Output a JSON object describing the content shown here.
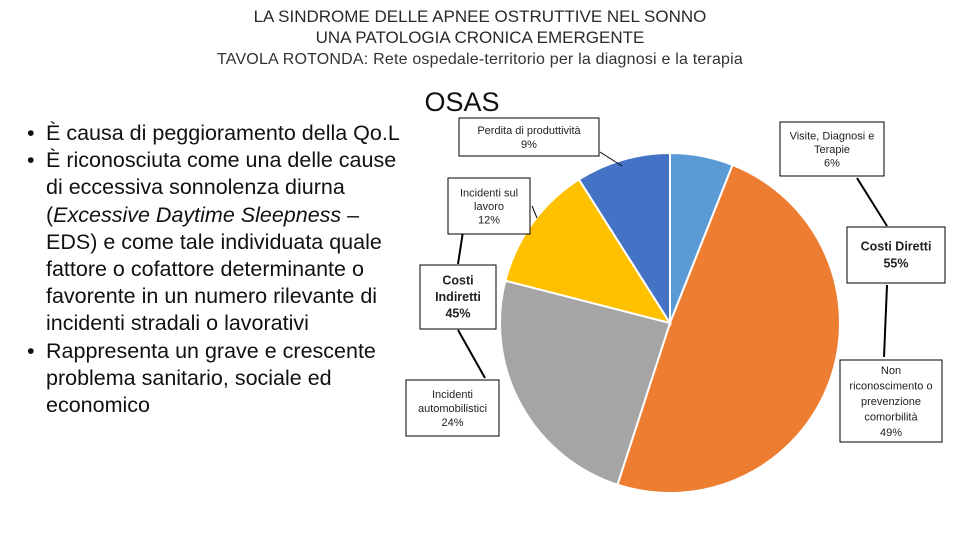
{
  "header": {
    "title_line1": "LA SINDROME DELLE APNEE OSTRUTTIVE NEL SONNO",
    "title_line2": "UNA PATOLOGIA CRONICA EMERGENTE",
    "subtitle": "TAVOLA ROTONDA: Rete ospedale-territorio per la diagnosi e la terapia"
  },
  "bullets": [
    {
      "segments": [
        {
          "text": "È causa di peggioramento della Qo.L",
          "italic": false
        }
      ]
    },
    {
      "segments": [
        {
          "text": "È riconosciuta come una delle cause di eccessiva sonnolenza diurna (",
          "italic": false
        },
        {
          "text": "Excessive Daytime Sleepness",
          "italic": true
        },
        {
          "text": " – EDS) e come tale individuata quale fattore o cofattore determinante o favorente in un numero rilevante di incidenti stradali o lavorativi",
          "italic": false
        }
      ]
    },
    {
      "segments": [
        {
          "text": "Rappresenta un grave e crescente problema sanitario, sociale ed economico",
          "italic": false
        }
      ]
    }
  ],
  "chart_data": {
    "type": "pie",
    "title": "OSAS",
    "slices": [
      {
        "name": "Visite, Diagnosi e Terapie",
        "value": 6,
        "color": "#5B9BD5"
      },
      {
        "name": "Non riconoscimento o prevenzione comorbilità",
        "value": 49,
        "color": "#ED7D31"
      },
      {
        "name": "Incidenti automobilistici",
        "value": 24,
        "color": "#A5A5A5"
      },
      {
        "name": "Incidenti sul lavoro",
        "value": 12,
        "color": "#FFC000"
      },
      {
        "name": "Perdita di produttività",
        "value": 9,
        "color": "#4472C4"
      }
    ],
    "labels": [
      {
        "lines": [
          "Perdita di produttività",
          "9%"
        ]
      },
      {
        "lines": [
          "Visite, Diagnosi e",
          "Terapie",
          "6%"
        ]
      },
      {
        "lines": [
          "Incidenti sul",
          "lavoro",
          "12%"
        ]
      },
      {
        "lines": [
          "Costi Diretti",
          "55%"
        ]
      },
      {
        "lines": [
          "Costi",
          "Indiretti",
          "45%"
        ]
      },
      {
        "lines": [
          "Non",
          "riconoscimento o",
          "prevenzione",
          "comorbilità",
          "49%"
        ]
      },
      {
        "lines": [
          "Incidenti",
          "automobilistici",
          "24%"
        ]
      }
    ]
  }
}
